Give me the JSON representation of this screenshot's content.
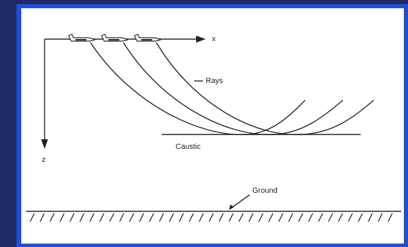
{
  "labels": {
    "x_axis": "x",
    "z_axis": "z",
    "rays": "Rays",
    "caustic": "Caustic",
    "ground": "Ground"
  }
}
